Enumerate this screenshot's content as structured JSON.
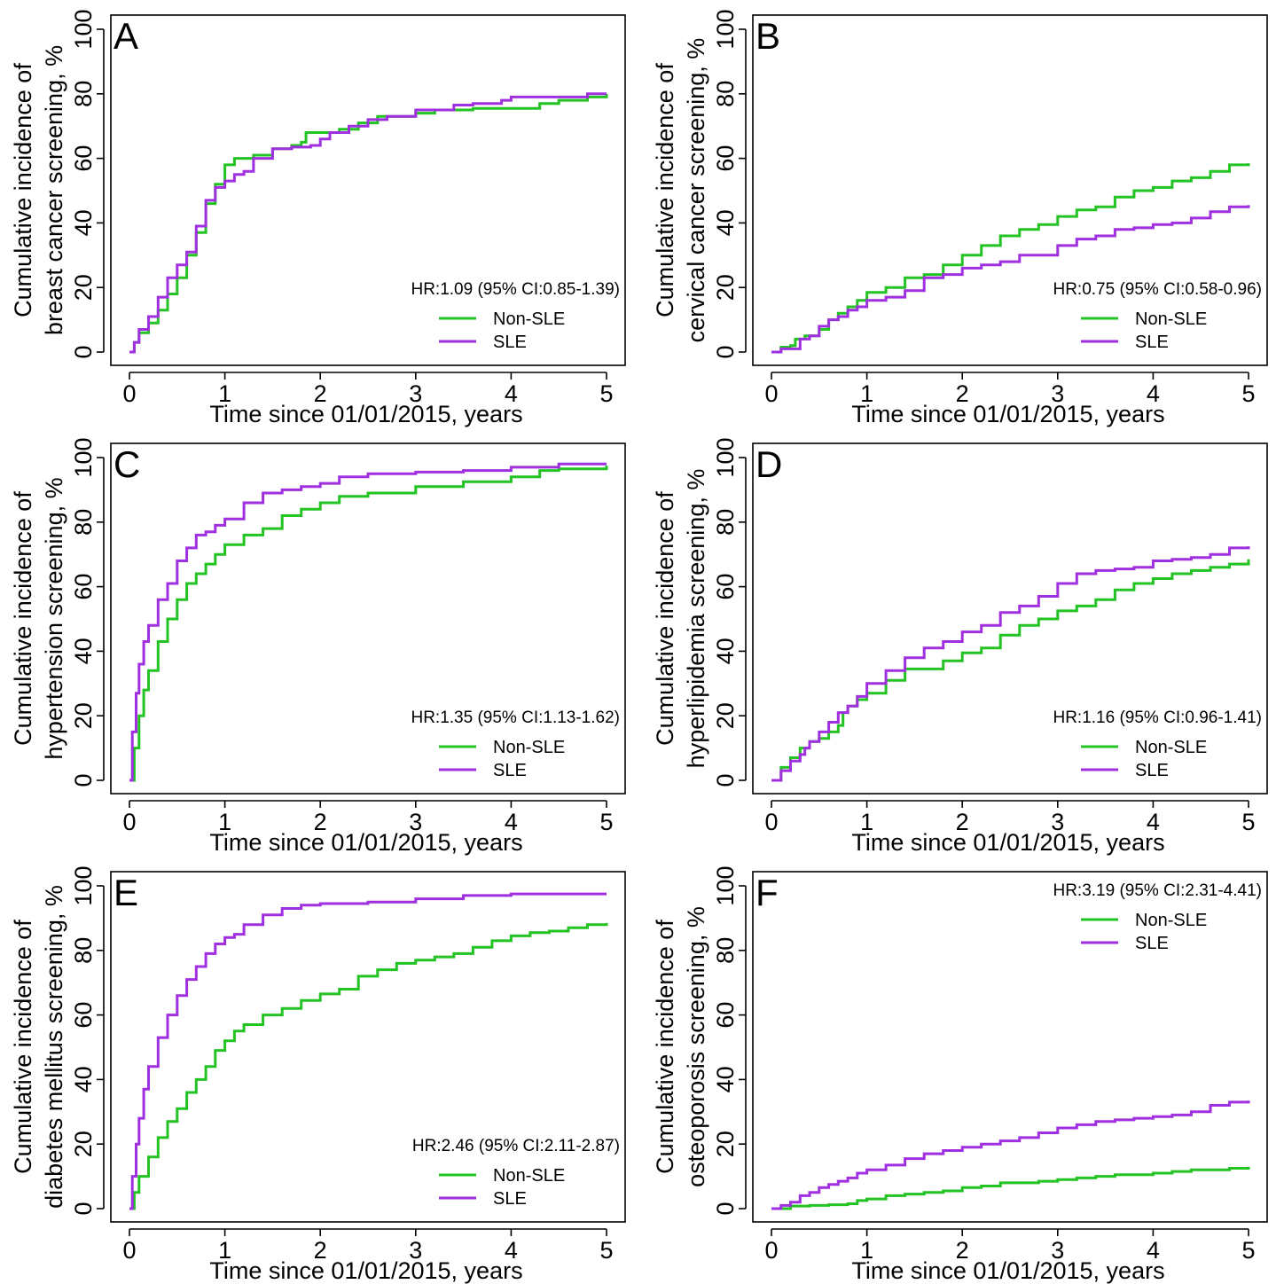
{
  "colors": {
    "non_sle": "#22C322",
    "sle": "#A02FE0"
  },
  "chart_data": [
    {
      "type": "line",
      "panel": "A",
      "xlabel": "Time since 01/01/2015, years",
      "ylabel_line1": "Cumulative incidence of",
      "ylabel_line2": "breast cancer screening, %",
      "xlim": [
        0,
        5
      ],
      "ylim": [
        0,
        100
      ],
      "xticks": [
        "0",
        "1",
        "2",
        "3",
        "4",
        "5"
      ],
      "yticks": [
        "0",
        "20",
        "40",
        "60",
        "80",
        "100"
      ],
      "annotation": "HR:1.09 (95% CI:0.85-1.39)",
      "legend_position": "bottom-right",
      "grid": false,
      "series": [
        {
          "name": "Non-SLE",
          "x": [
            0,
            0.05,
            0.1,
            0.2,
            0.3,
            0.4,
            0.5,
            0.6,
            0.7,
            0.8,
            0.9,
            1.0,
            1.1,
            1.3,
            1.5,
            1.7,
            1.8,
            1.85,
            2.0,
            2.2,
            2.4,
            2.6,
            2.8,
            3.0,
            3.2,
            3.4,
            3.6,
            3.8,
            4.0,
            4.2,
            4.3,
            4.5,
            4.6,
            4.8,
            5.0
          ],
          "y": [
            0,
            3,
            6,
            9,
            13,
            18,
            23,
            30,
            37,
            46,
            52,
            58,
            60,
            61,
            63,
            64,
            65,
            68,
            68,
            69,
            71,
            73,
            73,
            74,
            75,
            75,
            75.5,
            75.5,
            75.5,
            75.5,
            77,
            78,
            78,
            79,
            80
          ]
        },
        {
          "name": "SLE",
          "x": [
            0,
            0.05,
            0.1,
            0.2,
            0.3,
            0.4,
            0.5,
            0.6,
            0.7,
            0.8,
            0.9,
            1.0,
            1.1,
            1.2,
            1.3,
            1.5,
            1.7,
            1.9,
            2.0,
            2.1,
            2.3,
            2.5,
            2.7,
            2.9,
            3.0,
            3.2,
            3.4,
            3.6,
            3.8,
            3.9,
            4.0,
            4.3,
            4.6,
            4.8,
            5.0
          ],
          "y": [
            0,
            3,
            7,
            11,
            17,
            23,
            27,
            31,
            39,
            47,
            51,
            53,
            55,
            56,
            60,
            63,
            63.5,
            64,
            66,
            68,
            70,
            72,
            73,
            73,
            75,
            75,
            76.5,
            77,
            77,
            78,
            79,
            79,
            79,
            80,
            80
          ]
        }
      ]
    },
    {
      "type": "line",
      "panel": "B",
      "xlabel": "Time since 01/01/2015, years",
      "ylabel_line1": "Cumulative incidence of",
      "ylabel_line2": "cervical cancer screening, %",
      "xlim": [
        0,
        5
      ],
      "ylim": [
        0,
        100
      ],
      "xticks": [
        "0",
        "1",
        "2",
        "3",
        "4",
        "5"
      ],
      "yticks": [
        "0",
        "20",
        "40",
        "60",
        "80",
        "100"
      ],
      "annotation": "HR:0.75 (95% CI:0.58-0.96)",
      "legend_position": "bottom-right",
      "grid": false,
      "series": [
        {
          "name": "Non-SLE",
          "x": [
            0,
            0.1,
            0.2,
            0.25,
            0.35,
            0.5,
            0.6,
            0.7,
            0.8,
            0.9,
            1.0,
            1.2,
            1.4,
            1.6,
            1.8,
            2.0,
            2.2,
            2.4,
            2.6,
            2.8,
            3.0,
            3.2,
            3.4,
            3.6,
            3.8,
            4.0,
            4.2,
            4.4,
            4.6,
            4.8,
            5.0
          ],
          "y": [
            0,
            1.5,
            2,
            4,
            5,
            7,
            10,
            12,
            14,
            16,
            18.5,
            20,
            23,
            24,
            27,
            30,
            33,
            36,
            38,
            39.5,
            42,
            44,
            45,
            48,
            50,
            51,
            53,
            54,
            56,
            58,
            58.5
          ]
        },
        {
          "name": "SLE",
          "x": [
            0,
            0.1,
            0.25,
            0.3,
            0.4,
            0.5,
            0.6,
            0.7,
            0.8,
            0.9,
            1.0,
            1.2,
            1.4,
            1.6,
            1.8,
            2.0,
            2.2,
            2.4,
            2.6,
            2.8,
            3.0,
            3.2,
            3.4,
            3.6,
            3.8,
            4.0,
            4.2,
            4.4,
            4.6,
            4.8,
            5.0
          ],
          "y": [
            0,
            1,
            1,
            4,
            5,
            8,
            10,
            11,
            13,
            14,
            16,
            17,
            19,
            23,
            24,
            26,
            27,
            28,
            30,
            30,
            33,
            35,
            36,
            38,
            38.5,
            39.5,
            40,
            41.5,
            43.5,
            45,
            45.5
          ]
        }
      ]
    },
    {
      "type": "line",
      "panel": "C",
      "xlabel": "Time since 01/01/2015, years",
      "ylabel_line1": "Cumulative incidence of",
      "ylabel_line2": "hypertension screening, %",
      "xlim": [
        0,
        5
      ],
      "ylim": [
        0,
        100
      ],
      "xticks": [
        "0",
        "1",
        "2",
        "3",
        "4",
        "5"
      ],
      "yticks": [
        "0",
        "20",
        "40",
        "60",
        "80",
        "100"
      ],
      "annotation": "HR:1.35 (95% CI:1.13-1.62)",
      "legend_position": "bottom-right",
      "grid": false,
      "series": [
        {
          "name": "Non-SLE",
          "x": [
            0,
            0.05,
            0.1,
            0.15,
            0.2,
            0.3,
            0.4,
            0.5,
            0.6,
            0.7,
            0.8,
            0.9,
            1.0,
            1.2,
            1.4,
            1.6,
            1.8,
            2.0,
            2.2,
            2.5,
            3.0,
            3.5,
            4.0,
            4.3,
            4.5,
            5.0
          ],
          "y": [
            0,
            10,
            20,
            28,
            34,
            43,
            50,
            56,
            61,
            64,
            67,
            70,
            73,
            76,
            78,
            82,
            84,
            86,
            88,
            89,
            91,
            92.5,
            94,
            96,
            96.5,
            97.5
          ]
        },
        {
          "name": "SLE",
          "x": [
            0,
            0.03,
            0.07,
            0.1,
            0.15,
            0.2,
            0.3,
            0.4,
            0.5,
            0.6,
            0.7,
            0.8,
            0.9,
            1.0,
            1.2,
            1.4,
            1.6,
            1.8,
            2.0,
            2.2,
            2.5,
            3.0,
            3.5,
            4.0,
            4.5,
            5.0
          ],
          "y": [
            0,
            15,
            27,
            36,
            43,
            48,
            56,
            61,
            68,
            72,
            76,
            77,
            79,
            81,
            86,
            89,
            90,
            91,
            92,
            94,
            95,
            95.5,
            96,
            97,
            98,
            98
          ]
        }
      ]
    },
    {
      "type": "line",
      "panel": "D",
      "xlabel": "Time since 01/01/2015, years",
      "ylabel_line1": "Cumulative incidence of",
      "ylabel_line2": "hyperlipidemia screening, %",
      "xlim": [
        0,
        5
      ],
      "ylim": [
        0,
        100
      ],
      "xticks": [
        "0",
        "1",
        "2",
        "3",
        "4",
        "5"
      ],
      "yticks": [
        "0",
        "20",
        "40",
        "60",
        "80",
        "100"
      ],
      "annotation": "HR:1.16 (95% CI:0.96-1.41)",
      "legend_position": "bottom-right",
      "grid": false,
      "series": [
        {
          "name": "Non-SLE",
          "x": [
            0,
            0.1,
            0.2,
            0.3,
            0.4,
            0.5,
            0.6,
            0.7,
            0.75,
            0.8,
            0.9,
            1.0,
            1.2,
            1.4,
            1.6,
            1.8,
            2.0,
            2.2,
            2.4,
            2.6,
            2.8,
            3.0,
            3.2,
            3.4,
            3.6,
            3.8,
            4.0,
            4.2,
            4.4,
            4.6,
            4.8,
            5.0
          ],
          "y": [
            0,
            4,
            7,
            10,
            12,
            13,
            15,
            17,
            21,
            23,
            25,
            27,
            31,
            34.5,
            34.5,
            37,
            39.5,
            41,
            45,
            48,
            50,
            52.5,
            54,
            56,
            59,
            61,
            62.5,
            64,
            65,
            66,
            67,
            68.5
          ]
        },
        {
          "name": "SLE",
          "x": [
            0,
            0.1,
            0.2,
            0.3,
            0.35,
            0.4,
            0.5,
            0.6,
            0.7,
            0.8,
            0.9,
            1.0,
            1.2,
            1.4,
            1.6,
            1.8,
            2.0,
            2.2,
            2.4,
            2.6,
            2.8,
            3.0,
            3.2,
            3.4,
            3.6,
            3.8,
            4.0,
            4.2,
            4.4,
            4.6,
            4.8,
            5.0
          ],
          "y": [
            0,
            3,
            6,
            8,
            10,
            12,
            15,
            18,
            21,
            23,
            26,
            30,
            34,
            38,
            41,
            43,
            46,
            48,
            52,
            54,
            57,
            61,
            64,
            65,
            65.5,
            66,
            68,
            68.5,
            69,
            70,
            72,
            72.5
          ]
        }
      ]
    },
    {
      "type": "line",
      "panel": "E",
      "xlabel": "Time since 01/01/2015, years",
      "ylabel_line1": "Cumulative incidence of",
      "ylabel_line2": "diabetes mellitus screening, %",
      "xlim": [
        0,
        5
      ],
      "ylim": [
        0,
        100
      ],
      "xticks": [
        "0",
        "1",
        "2",
        "3",
        "4",
        "5"
      ],
      "yticks": [
        "0",
        "20",
        "40",
        "60",
        "80",
        "100"
      ],
      "annotation": "HR:2.46 (95% CI:2.11-2.87)",
      "legend_position": "bottom-right",
      "grid": false,
      "series": [
        {
          "name": "Non-SLE",
          "x": [
            0,
            0.05,
            0.1,
            0.2,
            0.3,
            0.4,
            0.5,
            0.6,
            0.7,
            0.8,
            0.9,
            1.0,
            1.1,
            1.2,
            1.4,
            1.6,
            1.8,
            2.0,
            2.2,
            2.4,
            2.6,
            2.8,
            3.0,
            3.2,
            3.4,
            3.6,
            3.8,
            4.0,
            4.2,
            4.4,
            4.6,
            4.8,
            5.0
          ],
          "y": [
            0,
            5,
            10,
            16,
            22,
            27,
            31,
            36,
            40,
            44,
            49,
            52,
            55,
            57,
            60,
            62,
            64.5,
            66.5,
            68,
            72,
            74,
            76,
            77,
            78,
            79,
            81,
            83,
            84.5,
            85.5,
            86,
            87,
            88,
            88.5
          ]
        },
        {
          "name": "SLE",
          "x": [
            0,
            0.03,
            0.07,
            0.1,
            0.15,
            0.2,
            0.3,
            0.4,
            0.5,
            0.6,
            0.7,
            0.8,
            0.9,
            1.0,
            1.1,
            1.2,
            1.4,
            1.6,
            1.8,
            2.0,
            2.5,
            3.0,
            3.5,
            4.0,
            4.5,
            5.0
          ],
          "y": [
            0,
            10,
            20,
            28,
            37,
            44,
            53,
            60,
            66,
            71,
            75,
            79,
            82,
            84,
            85,
            88,
            91,
            93,
            94,
            94.5,
            95,
            96,
            97,
            97.5,
            97.5,
            97.5
          ]
        }
      ]
    },
    {
      "type": "line",
      "panel": "F",
      "xlabel": "Time since 01/01/2015, years",
      "ylabel_line1": "Cumulative incidence of",
      "ylabel_line2": "osteoporosis screening, %",
      "xlim": [
        0,
        5
      ],
      "ylim": [
        0,
        100
      ],
      "xticks": [
        "0",
        "1",
        "2",
        "3",
        "4",
        "5"
      ],
      "yticks": [
        "0",
        "20",
        "40",
        "60",
        "80",
        "100"
      ],
      "annotation": "HR:3.19 (95% CI:2.31-4.41)",
      "legend_position": "top-right",
      "grid": false,
      "series": [
        {
          "name": "Non-SLE",
          "x": [
            0,
            0.2,
            0.4,
            0.6,
            0.8,
            0.9,
            1.0,
            1.2,
            1.4,
            1.6,
            1.8,
            2.0,
            2.2,
            2.4,
            2.6,
            2.8,
            3.0,
            3.2,
            3.4,
            3.6,
            3.8,
            4.0,
            4.2,
            4.4,
            4.6,
            4.8,
            5.0
          ],
          "y": [
            0,
            0.8,
            1,
            1.2,
            1.5,
            2.5,
            3,
            4,
            4.5,
            5,
            5.5,
            6.5,
            7,
            8,
            8,
            8.5,
            9,
            9.5,
            10,
            10.5,
            10.5,
            11,
            11.5,
            12,
            12,
            12.5,
            13
          ]
        },
        {
          "name": "SLE",
          "x": [
            0,
            0.1,
            0.2,
            0.3,
            0.4,
            0.5,
            0.6,
            0.7,
            0.8,
            0.9,
            1.0,
            1.2,
            1.4,
            1.6,
            1.8,
            2.0,
            2.2,
            2.4,
            2.6,
            2.8,
            3.0,
            3.2,
            3.4,
            3.6,
            3.8,
            4.0,
            4.2,
            4.4,
            4.6,
            4.8,
            5.0
          ],
          "y": [
            0,
            1,
            2,
            4,
            5,
            6.5,
            7.5,
            8.5,
            9.5,
            11,
            12,
            13.5,
            15.5,
            17,
            18,
            19,
            20,
            21,
            22,
            23.5,
            25,
            26,
            27,
            27.5,
            28,
            28.5,
            29,
            30,
            32,
            33,
            33.5
          ]
        }
      ]
    }
  ]
}
